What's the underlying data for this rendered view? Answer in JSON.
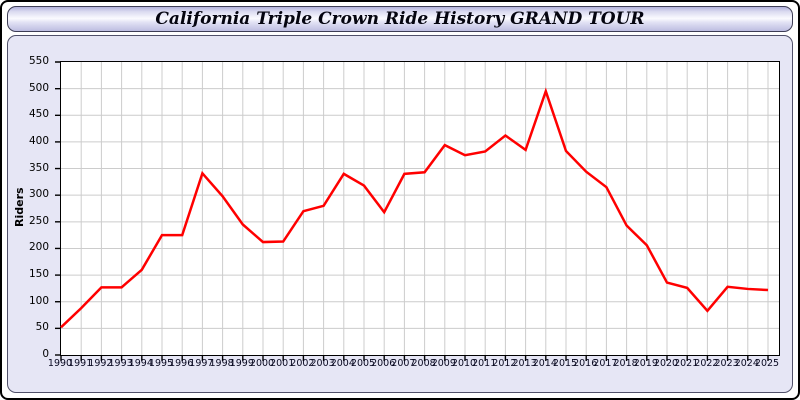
{
  "window": {
    "title": "California Triple Crown Ride History GRAND TOUR"
  },
  "colors": {
    "line": "#ff0000",
    "grid": "#cccccc",
    "plot_background": "#ffffff",
    "panel_background": "#e6e6f5",
    "plot_border": "#000000",
    "tick": "#000000"
  },
  "chart_data": {
    "type": "line",
    "title": "California Triple Crown Ride History GRAND TOUR",
    "xlabel": "",
    "ylabel": "Riders",
    "ylim": [
      0,
      550
    ],
    "ytick_step": 50,
    "grid": true,
    "legend_position": "none",
    "x": [
      1990,
      1991,
      1992,
      1993,
      1994,
      1995,
      1996,
      1997,
      1998,
      1999,
      2000,
      2001,
      2002,
      2003,
      2004,
      2005,
      2006,
      2007,
      2008,
      2009,
      2010,
      2011,
      2012,
      2013,
      2014,
      2015,
      2016,
      2017,
      2018,
      2019,
      2020,
      2021,
      2022,
      2023,
      2024,
      2025
    ],
    "series": [
      {
        "name": "Riders",
        "color": "#ff0000",
        "values": [
          52,
          88,
          127,
          127,
          160,
          225,
          225,
          341,
          298,
          245,
          212,
          213,
          270,
          280,
          340,
          318,
          268,
          340,
          343,
          394,
          375,
          382,
          412,
          385,
          495,
          383,
          344,
          315,
          243,
          206,
          136,
          126,
          83,
          128,
          124,
          122
        ]
      }
    ]
  }
}
